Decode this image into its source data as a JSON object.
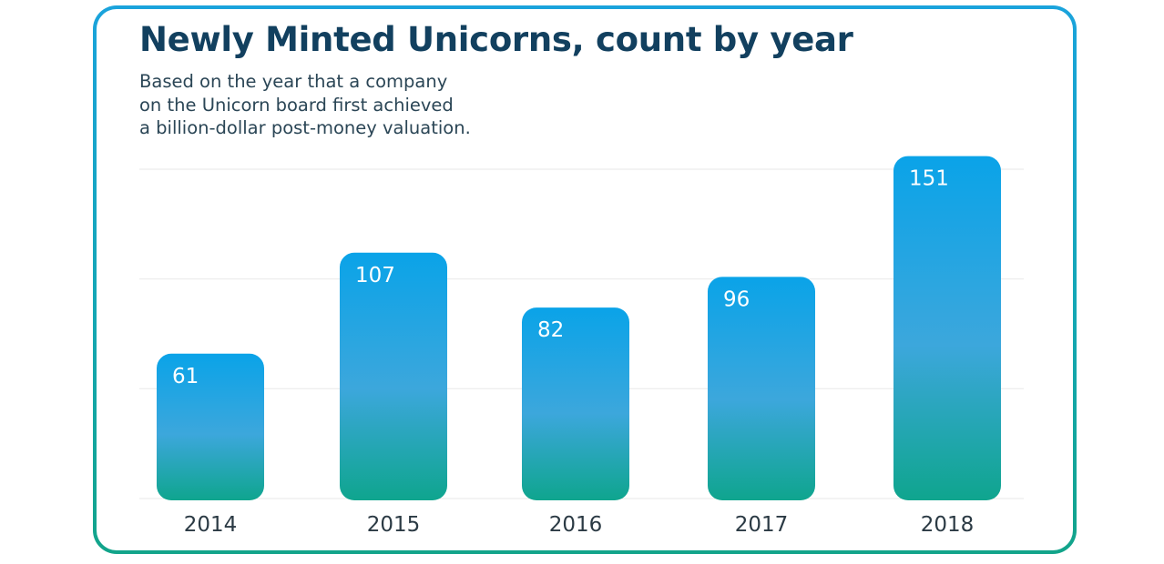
{
  "colors": {
    "bar_top": "#0aa3e8",
    "bar_mid": "#3ca7dc",
    "bar_bottom": "#0fa58e",
    "gridline": "#ececec",
    "title": "#12405f",
    "border_top": "#1aa3dc",
    "border_bottom": "#12a48a"
  },
  "chart_data": {
    "type": "bar",
    "title": "Newly Minted Unicorns, count by year",
    "subtitle_lines": [
      "Based on the year that a company",
      "on the Unicorn board first achieved",
      "a billion-dollar post-money valuation."
    ],
    "categories": [
      "2014",
      "2015",
      "2016",
      "2017",
      "2018"
    ],
    "values": [
      61,
      107,
      82,
      96,
      151
    ],
    "data_labels": [
      "61",
      "107",
      "82",
      "96",
      "151"
    ],
    "xlabel": "",
    "ylabel": "",
    "ylim": [
      0,
      150
    ],
    "gridlines": [
      0,
      50,
      100,
      150
    ],
    "grid": true,
    "legend": "none"
  }
}
